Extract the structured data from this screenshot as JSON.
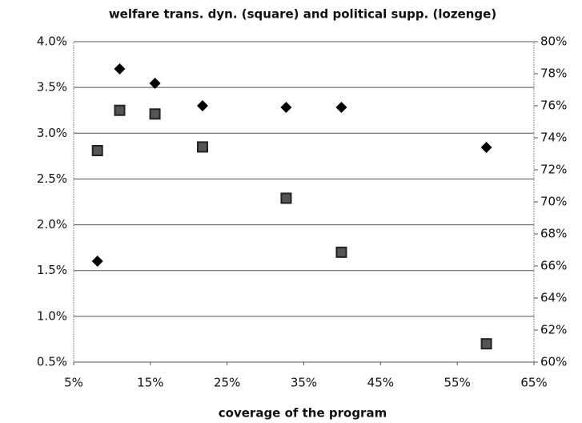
{
  "chart_data": {
    "type": "scatter",
    "title": "welfare trans. dyn. (square) and political supp. (lozenge)",
    "xlabel": "coverage of the program",
    "series": [
      {
        "marker": "square",
        "color": "#222222",
        "axis": "y",
        "x": [
          8.1,
          11.0,
          15.6,
          21.8,
          32.7,
          39.9,
          58.8
        ],
        "values": [
          2.81,
          3.25,
          3.21,
          2.85,
          2.29,
          1.7,
          0.7
        ]
      },
      {
        "marker": "diamond",
        "color": "#000000",
        "axis": "y2",
        "x": [
          8.1,
          11.0,
          15.6,
          21.8,
          32.7,
          39.9,
          58.8
        ],
        "values": [
          66.3,
          78.3,
          77.4,
          76.0,
          75.9,
          75.9,
          73.4
        ]
      }
    ],
    "xlim": [
      5,
      65
    ],
    "xticks": [
      {
        "value": 5,
        "label": "5%"
      },
      {
        "value": 15,
        "label": "15%"
      },
      {
        "value": 25,
        "label": "25%"
      },
      {
        "value": 35,
        "label": "35%"
      },
      {
        "value": 45,
        "label": "45%"
      },
      {
        "value": 55,
        "label": "55%"
      },
      {
        "value": 65,
        "label": "65%"
      }
    ],
    "ylim": [
      0.5,
      4.0
    ],
    "yticks": [
      {
        "value": 0.5,
        "label": "0.5%"
      },
      {
        "value": 1.0,
        "label": "1.0%"
      },
      {
        "value": 1.5,
        "label": "1.5%"
      },
      {
        "value": 2.0,
        "label": "2.0%"
      },
      {
        "value": 2.5,
        "label": "2.5%"
      },
      {
        "value": 3.0,
        "label": "3.0%"
      },
      {
        "value": 3.5,
        "label": "3.5%"
      },
      {
        "value": 4.0,
        "label": "4.0%"
      }
    ],
    "y2lim": [
      60,
      80
    ],
    "y2ticks": [
      {
        "value": 60,
        "label": "60%"
      },
      {
        "value": 62,
        "label": "62%"
      },
      {
        "value": 64,
        "label": "64%"
      },
      {
        "value": 66,
        "label": "66%"
      },
      {
        "value": 68,
        "label": "68%"
      },
      {
        "value": 70,
        "label": "70%"
      },
      {
        "value": 72,
        "label": "72%"
      },
      {
        "value": 74,
        "label": "74%"
      },
      {
        "value": 76,
        "label": "76%"
      },
      {
        "value": 78,
        "label": "78%"
      },
      {
        "value": 80,
        "label": "80%"
      }
    ],
    "grid": true
  }
}
